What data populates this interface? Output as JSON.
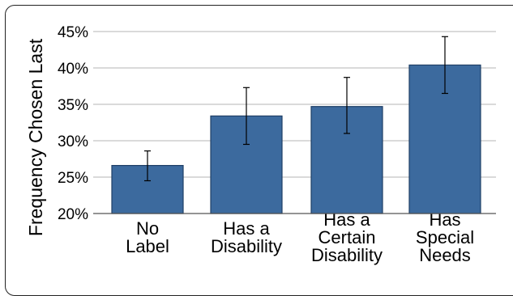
{
  "chart_data": {
    "type": "bar",
    "title": "",
    "xlabel": "",
    "ylabel": "Frequency Chosen Last",
    "ylim": [
      20,
      45
    ],
    "yticks": [
      "20%",
      "25%",
      "30%",
      "35%",
      "40%",
      "45%"
    ],
    "ytick_values": [
      20,
      25,
      30,
      35,
      40,
      45
    ],
    "grid": true,
    "bar_color": "#3c6a9e",
    "categories": [
      [
        "No",
        "Label"
      ],
      [
        "Has a",
        "Disability"
      ],
      [
        "Has a",
        "Certain",
        "Disability"
      ],
      [
        "Has",
        "Special",
        "Needs"
      ]
    ],
    "values": [
      26.6,
      33.4,
      34.7,
      40.4
    ],
    "error_low": [
      24.5,
      29.5,
      31.0,
      36.5
    ],
    "error_high": [
      28.6,
      37.3,
      38.7,
      44.3
    ]
  }
}
